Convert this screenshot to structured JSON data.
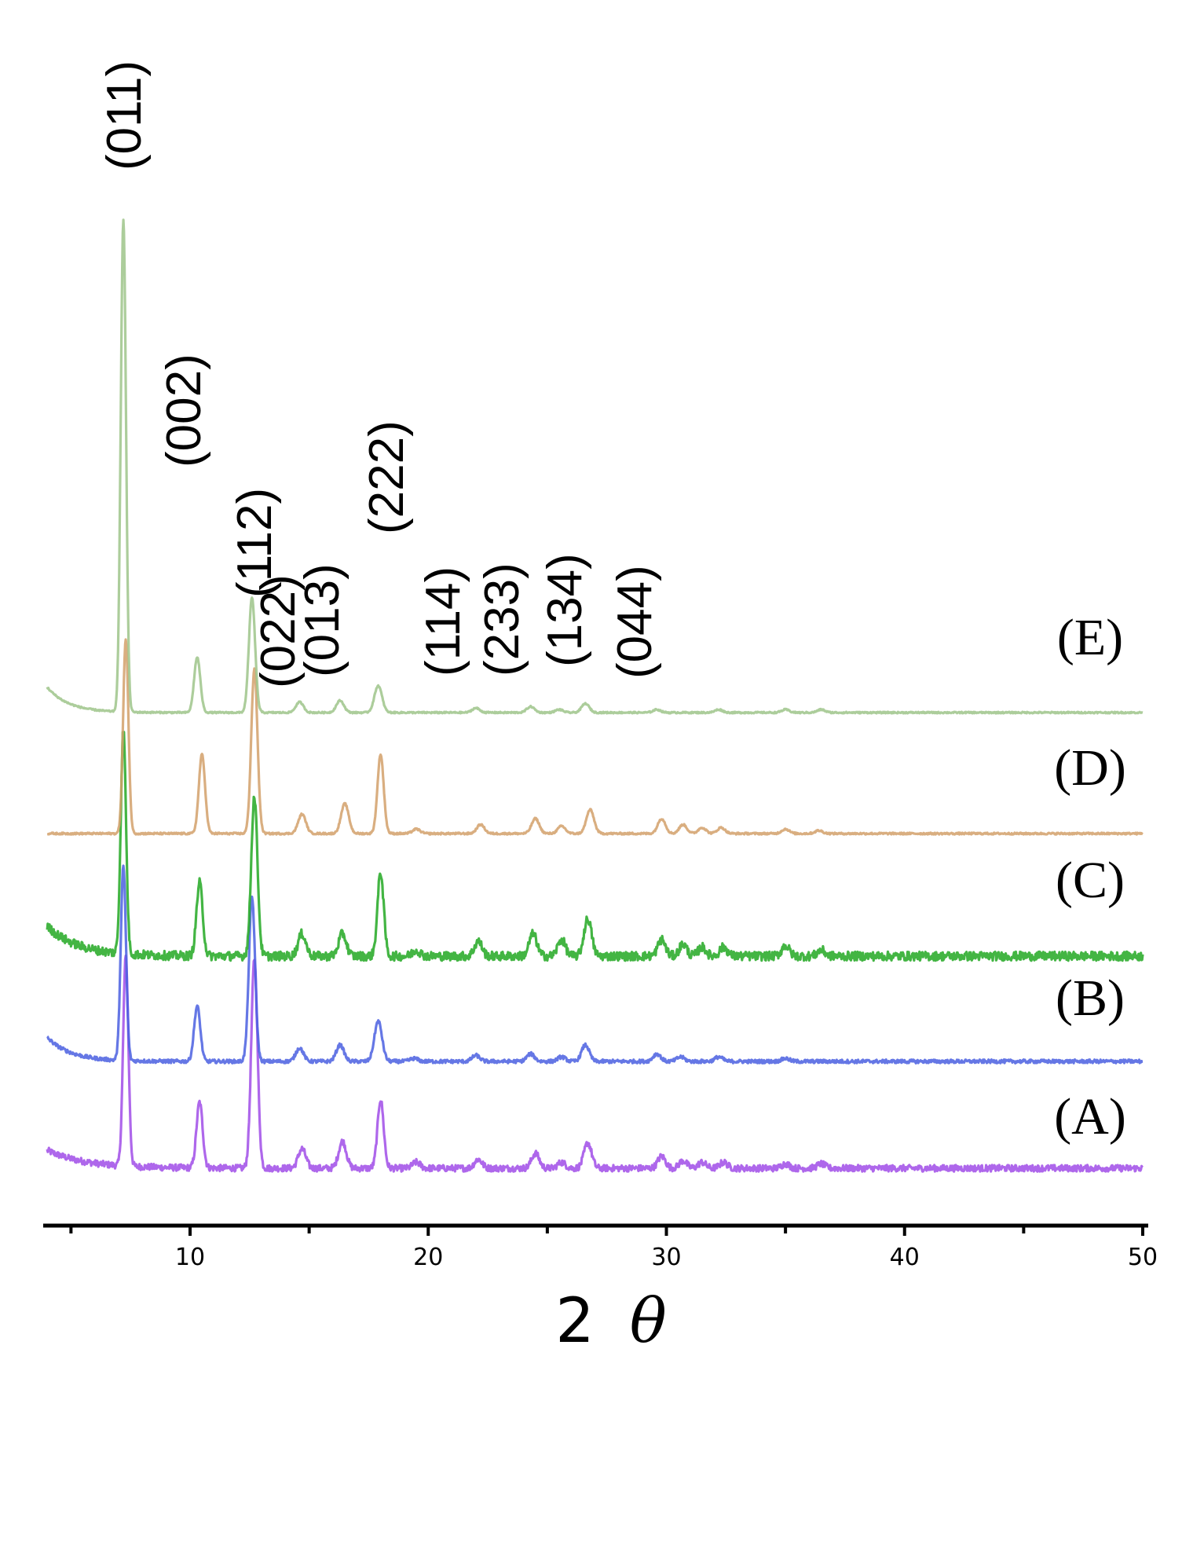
{
  "chart_data": {
    "type": "line",
    "title": "",
    "xlabel_number": "2",
    "xlabel_symbol": "θ",
    "ylabel": "",
    "xlim": [
      4,
      50
    ],
    "xticks": [
      10,
      20,
      30,
      40,
      50
    ],
    "minor_xticks": [
      5,
      15,
      25,
      35,
      45
    ],
    "grid": false,
    "peak_labels": [
      {
        "text": "(011)",
        "two_theta": 7.3
      },
      {
        "text": "(002)",
        "two_theta": 10.3
      },
      {
        "text": "(112)",
        "two_theta": 12.6
      },
      {
        "text": "(022)",
        "two_theta": 14.6
      },
      {
        "text": "(013)",
        "two_theta": 16.3
      },
      {
        "text": "(222)",
        "two_theta": 17.9
      },
      {
        "text": "(114)",
        "two_theta": 22.0
      },
      {
        "text": "(233)",
        "two_theta": 24.2
      },
      {
        "text": "(134)",
        "two_theta": 26.6
      },
      {
        "text": "(044)",
        "two_theta": 29.6
      }
    ],
    "series": [
      {
        "name": "(A)",
        "color": "#a04ce8",
        "noise": 0.22,
        "background": {
          "start": 1.2,
          "end": 0.0,
          "decay": 1.6
        },
        "peaks": [
          [
            7.3,
            14.0
          ],
          [
            10.4,
            4.4
          ],
          [
            12.7,
            14.0
          ],
          [
            14.7,
            1.3
          ],
          [
            16.4,
            1.8
          ],
          [
            18.0,
            4.6
          ],
          [
            19.5,
            0.4
          ],
          [
            22.1,
            0.6
          ],
          [
            24.5,
            1.0
          ],
          [
            25.6,
            0.4
          ],
          [
            26.7,
            1.7
          ],
          [
            29.8,
            0.8
          ],
          [
            30.7,
            0.5
          ],
          [
            31.5,
            0.4
          ],
          [
            32.4,
            0.4
          ],
          [
            35.0,
            0.3
          ],
          [
            36.5,
            0.3
          ]
        ]
      },
      {
        "name": "(B)",
        "color": "#4a5fe0",
        "noise": 0.12,
        "background": {
          "start": 1.6,
          "end": 0.0,
          "decay": 1.0
        },
        "peaks": [
          [
            7.2,
            13.0
          ],
          [
            10.3,
            3.7
          ],
          [
            12.6,
            11.0
          ],
          [
            14.6,
            0.9
          ],
          [
            16.3,
            1.1
          ],
          [
            17.9,
            2.7
          ],
          [
            19.4,
            0.2
          ],
          [
            22.0,
            0.4
          ],
          [
            24.3,
            0.5
          ],
          [
            25.6,
            0.3
          ],
          [
            26.6,
            1.1
          ],
          [
            29.6,
            0.5
          ],
          [
            30.6,
            0.3
          ],
          [
            32.2,
            0.3
          ],
          [
            35.0,
            0.2
          ]
        ]
      },
      {
        "name": "(C)",
        "color": "#22a822",
        "noise": 0.3,
        "background": {
          "start": 2.0,
          "end": 0.0,
          "decay": 1.3
        },
        "peaks": [
          [
            7.2,
            15.0
          ],
          [
            10.4,
            4.9
          ],
          [
            12.7,
            10.7
          ],
          [
            14.7,
            1.5
          ],
          [
            16.4,
            1.5
          ],
          [
            18.0,
            5.6
          ],
          [
            19.5,
            0.4
          ],
          [
            22.1,
            1.0
          ],
          [
            24.4,
            1.5
          ],
          [
            25.6,
            1.1
          ],
          [
            26.7,
            2.5
          ],
          [
            29.8,
            1.1
          ],
          [
            30.7,
            0.8
          ],
          [
            31.5,
            0.6
          ],
          [
            32.4,
            0.6
          ],
          [
            35.0,
            0.7
          ],
          [
            36.5,
            0.4
          ]
        ]
      },
      {
        "name": "(D)",
        "color": "#d2a06a",
        "noise": 0.06,
        "background": {
          "start": 0.0,
          "end": 0.0,
          "decay": 1.0
        },
        "peaks": [
          [
            7.3,
            13.0
          ],
          [
            10.5,
            5.3
          ],
          [
            12.7,
            11.0
          ],
          [
            14.7,
            1.3
          ],
          [
            16.5,
            2.0
          ],
          [
            18.0,
            5.3
          ],
          [
            19.5,
            0.3
          ],
          [
            22.2,
            0.6
          ],
          [
            24.5,
            1.0
          ],
          [
            25.6,
            0.5
          ],
          [
            26.8,
            1.6
          ],
          [
            29.8,
            1.0
          ],
          [
            30.7,
            0.6
          ],
          [
            31.5,
            0.4
          ],
          [
            32.3,
            0.4
          ],
          [
            35.0,
            0.3
          ],
          [
            36.4,
            0.2
          ]
        ]
      },
      {
        "name": "(E)",
        "color": "#9ec48a",
        "noise": 0.05,
        "background": {
          "start": 1.7,
          "end": 0.0,
          "decay": 0.9
        },
        "peaks": [
          [
            7.2,
            33.0
          ],
          [
            10.3,
            3.7
          ],
          [
            12.6,
            7.7
          ],
          [
            14.6,
            0.7
          ],
          [
            16.3,
            0.8
          ],
          [
            17.9,
            1.8
          ],
          [
            22.0,
            0.3
          ],
          [
            24.3,
            0.4
          ],
          [
            25.5,
            0.2
          ],
          [
            26.6,
            0.6
          ],
          [
            29.6,
            0.2
          ],
          [
            32.2,
            0.2
          ],
          [
            35.0,
            0.2
          ],
          [
            36.5,
            0.2
          ]
        ]
      }
    ]
  }
}
